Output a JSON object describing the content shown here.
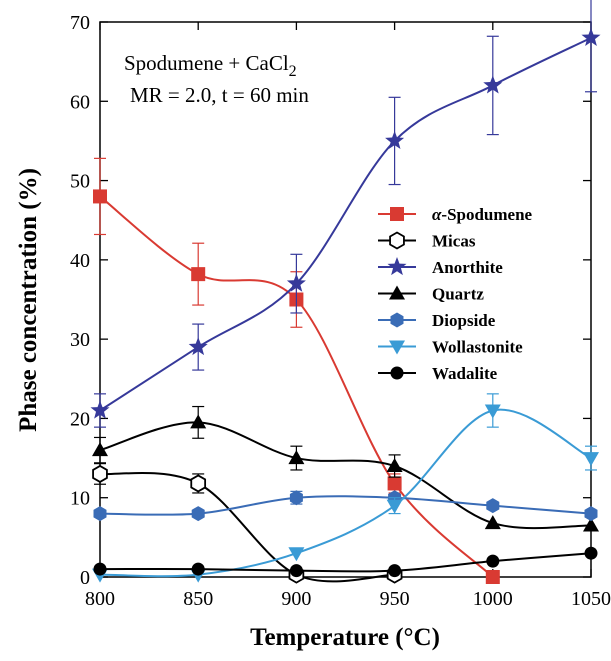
{
  "chart_data": {
    "type": "line",
    "xlabel": "Temperature (°C)",
    "ylabel": "Phase concentration (%)",
    "xlim": [
      800,
      1050
    ],
    "ylim": [
      0,
      70
    ],
    "x": [
      800,
      850,
      900,
      950,
      1000,
      1050
    ],
    "xticks": [
      "800",
      "850",
      "900",
      "950",
      "1000",
      "1050"
    ],
    "yticks": [
      "0",
      "10",
      "20",
      "30",
      "40",
      "50",
      "60",
      "70"
    ],
    "grid": false,
    "legend_position": "center-right",
    "annotation": {
      "line1_main": "Spodumene + CaCl",
      "line1_sub": "2",
      "line2": "MR = 2.0, t = 60 min"
    },
    "series": [
      {
        "name_prefix": "α",
        "name_suffix": "-Spodumene",
        "color": "#d93a32",
        "marker": "square-filled",
        "x": [
          800,
          850,
          900,
          950,
          1000
        ],
        "values": [
          48,
          38.2,
          35,
          11.8,
          0
        ],
        "errors": [
          4.8,
          3.9,
          3.5,
          1.2,
          0
        ]
      },
      {
        "name": "Micas",
        "color": "#000000",
        "marker": "hexagon-open",
        "x": [
          800,
          850,
          900,
          950
        ],
        "values": [
          13,
          11.8,
          0.3,
          0.3
        ],
        "errors": [
          1.3,
          1.2,
          0,
          0
        ]
      },
      {
        "name": "Anorthite",
        "color": "#36399a",
        "marker": "star-filled",
        "x": [
          800,
          850,
          900,
          950,
          1000,
          1050
        ],
        "values": [
          21,
          29,
          37,
          55,
          62,
          68
        ],
        "errors": [
          2.1,
          2.9,
          3.7,
          5.5,
          6.2,
          6.8
        ]
      },
      {
        "name": "Quartz",
        "color": "#000000",
        "marker": "triangle-up-filled",
        "x": [
          800,
          850,
          900,
          950,
          1000,
          1050
        ],
        "values": [
          16,
          19.5,
          15,
          14,
          6.8,
          6.5
        ],
        "errors": [
          1.6,
          2.0,
          1.5,
          1.4,
          0,
          0
        ]
      },
      {
        "name": "Diopside",
        "color": "#3a6cb6",
        "marker": "hexagon-filled",
        "x": [
          800,
          850,
          900,
          950,
          1000,
          1050
        ],
        "values": [
          8,
          8,
          10,
          10,
          9,
          8
        ],
        "errors": [
          0,
          0,
          0.8,
          0,
          0,
          0
        ]
      },
      {
        "name": "Wollastonite",
        "color": "#3a9bd5",
        "marker": "triangle-down-filled",
        "x": [
          800,
          850,
          900,
          950,
          1000,
          1050
        ],
        "values": [
          0.3,
          0.3,
          3,
          9,
          21,
          15
        ],
        "errors": [
          0,
          0,
          0,
          1.0,
          2.1,
          1.5
        ]
      },
      {
        "name": "Wadalite",
        "color": "#000000",
        "marker": "circle-filled",
        "x": [
          800,
          850,
          900,
          950,
          1000,
          1050
        ],
        "values": [
          1,
          1,
          0.8,
          0.8,
          2,
          3
        ],
        "errors": [
          0,
          0,
          0,
          0,
          0,
          0
        ]
      }
    ]
  }
}
